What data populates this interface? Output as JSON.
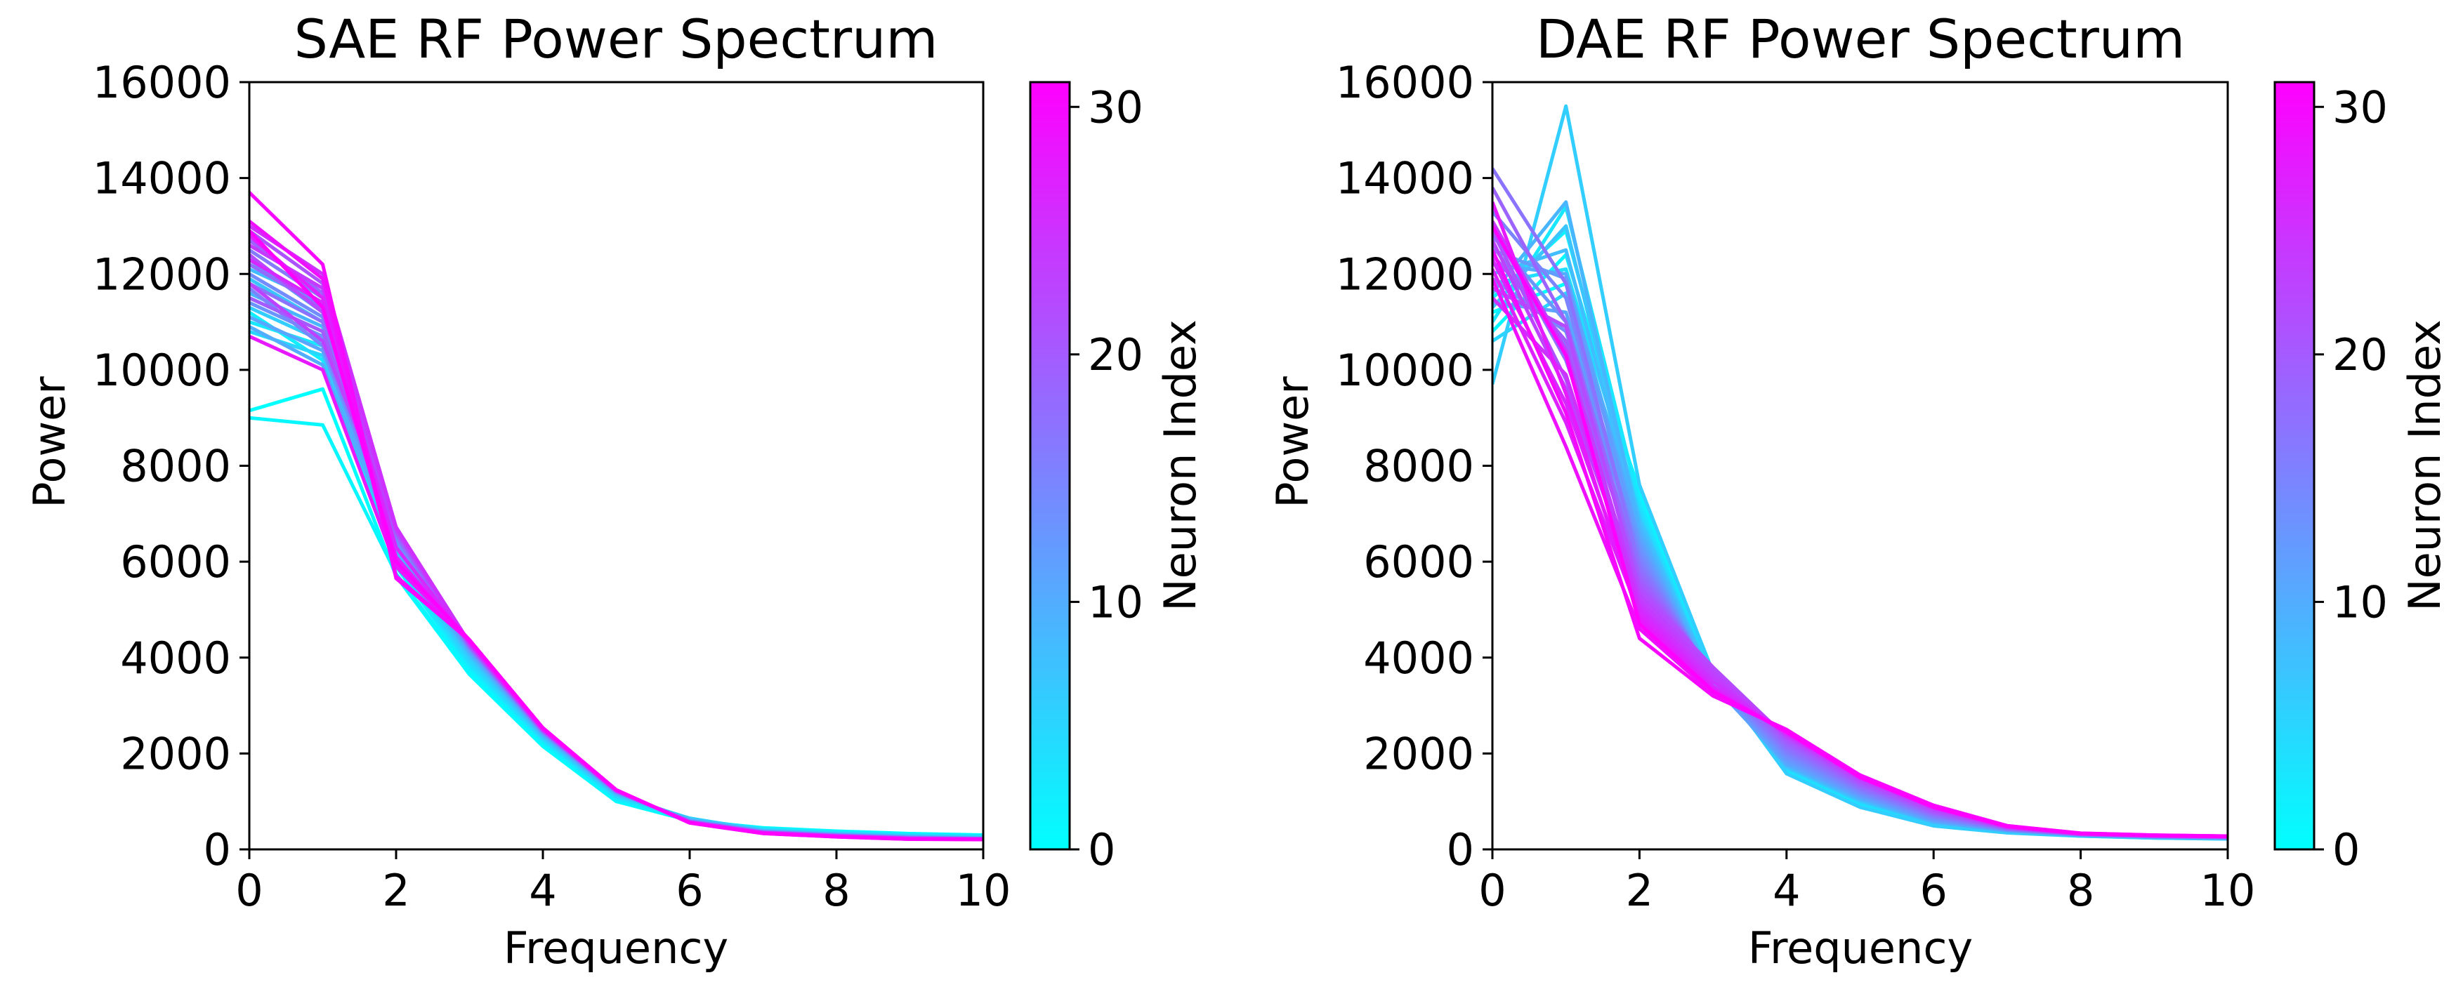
{
  "figure_description": "Two side-by-side line charts of receptive-field power spectra, one line per neuron, colored by neuron index with a cyan-to-magenta colormap",
  "colormap": {
    "name": "cool",
    "start": "#00ffff",
    "end": "#ff00ff"
  },
  "chart_data": [
    {
      "type": "line",
      "title": "SAE RF Power Spectrum",
      "xlabel": "Frequency",
      "ylabel": "Power",
      "xlim": [
        0,
        10
      ],
      "ylim": [
        0,
        16000
      ],
      "xticks": [
        "0",
        "2",
        "4",
        "6",
        "8",
        "10"
      ],
      "yticks": [
        "0",
        "2000",
        "4000",
        "6000",
        "8000",
        "10000",
        "12000",
        "14000",
        "16000"
      ],
      "grid": false,
      "x": [
        0,
        1,
        2,
        3,
        4,
        5,
        6,
        7,
        8,
        9,
        10
      ],
      "colorbar": {
        "label": "Neuron Index",
        "range": [
          0,
          31
        ],
        "ticks": [
          "0",
          "10",
          "20",
          "30"
        ]
      },
      "series": [
        {
          "values": [
            9150,
            9600,
            5700,
            3650,
            2150,
            1000,
            600,
            450,
            380,
            330,
            300
          ]
        },
        {
          "values": [
            9000,
            8850,
            5750,
            3700,
            2200,
            1020,
            610,
            440,
            370,
            320,
            290
          ]
        },
        {
          "values": [
            11200,
            10200,
            5900,
            3800,
            2250,
            1050,
            620,
            430,
            360,
            310,
            280
          ]
        },
        {
          "values": [
            11000,
            10500,
            5950,
            3850,
            2280,
            1080,
            630,
            420,
            350,
            300,
            270
          ]
        },
        {
          "values": [
            11500,
            10800,
            6000,
            3900,
            2300,
            1100,
            640,
            410,
            340,
            290,
            260
          ]
        },
        {
          "values": [
            10800,
            10300,
            6050,
            3950,
            2320,
            1120,
            650,
            400,
            330,
            280,
            250
          ]
        },
        {
          "values": [
            11300,
            10600,
            6100,
            4000,
            2340,
            1140,
            640,
            395,
            325,
            275,
            245
          ]
        },
        {
          "values": [
            11900,
            11000,
            6150,
            4050,
            2360,
            1150,
            630,
            390,
            320,
            270,
            240
          ]
        },
        {
          "values": [
            12100,
            11400,
            6200,
            4080,
            2380,
            1160,
            620,
            385,
            315,
            265,
            235
          ]
        },
        {
          "values": [
            11600,
            10900,
            6250,
            4100,
            2400,
            1170,
            610,
            380,
            310,
            260,
            230
          ]
        },
        {
          "values": [
            10900,
            10100,
            6300,
            4120,
            2410,
            1180,
            600,
            375,
            305,
            255,
            228
          ]
        },
        {
          "values": [
            11100,
            10400,
            6350,
            4150,
            2420,
            1190,
            595,
            372,
            302,
            252,
            226
          ]
        },
        {
          "values": [
            12300,
            11200,
            6400,
            4170,
            2430,
            1195,
            590,
            370,
            300,
            250,
            225
          ]
        },
        {
          "values": [
            11400,
            10700,
            6450,
            4190,
            2440,
            1200,
            588,
            368,
            298,
            248,
            224
          ]
        },
        {
          "values": [
            12000,
            11100,
            6500,
            4200,
            2450,
            1205,
            586,
            366,
            296,
            246,
            223
          ]
        },
        {
          "values": [
            11700,
            10500,
            6520,
            4210,
            2455,
            1210,
            584,
            364,
            294,
            244,
            222
          ]
        },
        {
          "values": [
            12500,
            11500,
            6540,
            4220,
            2460,
            1212,
            582,
            362,
            292,
            242,
            221
          ]
        },
        {
          "values": [
            11800,
            11000,
            6560,
            4230,
            2465,
            1214,
            580,
            360,
            290,
            240,
            220
          ]
        },
        {
          "values": [
            12200,
            11300,
            6580,
            4240,
            2470,
            1216,
            578,
            358,
            288,
            238,
            219
          ]
        },
        {
          "values": [
            12700,
            11600,
            6600,
            4250,
            2475,
            1218,
            576,
            356,
            286,
            236,
            218
          ]
        },
        {
          "values": [
            11500,
            10800,
            6620,
            4260,
            2480,
            1220,
            574,
            354,
            284,
            234,
            217
          ]
        },
        {
          "values": [
            12900,
            11800,
            6640,
            4270,
            2485,
            1222,
            572,
            352,
            282,
            232,
            216
          ]
        },
        {
          "values": [
            12400,
            11200,
            6660,
            4280,
            2490,
            1224,
            570,
            350,
            280,
            230,
            215
          ]
        },
        {
          "values": [
            11800,
            10600,
            6680,
            4290,
            2495,
            1226,
            568,
            348,
            278,
            228,
            214
          ]
        },
        {
          "values": [
            12600,
            11700,
            6700,
            4300,
            2500,
            1228,
            566,
            346,
            276,
            226,
            213
          ]
        },
        {
          "values": [
            13000,
            12000,
            6720,
            4310,
            2505,
            1230,
            564,
            344,
            274,
            224,
            212
          ]
        },
        {
          "values": [
            12300,
            11400,
            6300,
            4320,
            2510,
            1232,
            562,
            342,
            272,
            222,
            211
          ]
        },
        {
          "values": [
            12800,
            11500,
            6100,
            4330,
            2515,
            1234,
            560,
            340,
            270,
            220,
            210
          ]
        },
        {
          "values": [
            10700,
            10000,
            5900,
            4340,
            2520,
            1236,
            558,
            338,
            268,
            218,
            209
          ]
        },
        {
          "values": [
            13100,
            11900,
            5700,
            4350,
            2525,
            1238,
            556,
            336,
            266,
            216,
            208
          ]
        },
        {
          "values": [
            13700,
            12200,
            5650,
            4360,
            2530,
            1240,
            554,
            334,
            264,
            214,
            207
          ]
        },
        {
          "values": [
            12900,
            11300,
            6000,
            4370,
            2535,
            1242,
            552,
            332,
            262,
            212,
            206
          ]
        }
      ]
    },
    {
      "type": "line",
      "title": "DAE RF Power Spectrum",
      "xlabel": "Frequency",
      "ylabel": "Power",
      "xlim": [
        0,
        10
      ],
      "ylim": [
        0,
        16000
      ],
      "xticks": [
        "0",
        "2",
        "4",
        "6",
        "8",
        "10"
      ],
      "yticks": [
        "0",
        "2000",
        "4000",
        "6000",
        "8000",
        "10000",
        "12000",
        "14000",
        "16000"
      ],
      "grid": false,
      "x": [
        0,
        1,
        2,
        3,
        4,
        5,
        6,
        7,
        8,
        9,
        10
      ],
      "colorbar": {
        "label": "Neuron Index",
        "range": [
          0,
          31
        ],
        "ticks": [
          "0",
          "10",
          "20",
          "30"
        ]
      },
      "series": [
        {
          "values": [
            11200,
            11800,
            7500,
            3700,
            1600,
            900,
            500,
            350,
            280,
            240,
            220
          ]
        },
        {
          "values": [
            10800,
            12400,
            7400,
            3650,
            1620,
            920,
            510,
            355,
            282,
            242,
            222
          ]
        },
        {
          "values": [
            11500,
            12900,
            7300,
            3600,
            1640,
            940,
            520,
            360,
            284,
            244,
            224
          ]
        },
        {
          "values": [
            11000,
            13400,
            7200,
            3580,
            1660,
            960,
            530,
            365,
            286,
            246,
            226
          ]
        },
        {
          "values": [
            11800,
            12100,
            7100,
            3560,
            1680,
            980,
            540,
            370,
            288,
            248,
            228
          ]
        },
        {
          "values": [
            10600,
            11600,
            7000,
            3540,
            1700,
            1000,
            550,
            375,
            290,
            250,
            230
          ]
        },
        {
          "values": [
            9700,
            15500,
            7600,
            3680,
            1580,
            880,
            490,
            345,
            278,
            238,
            218
          ]
        },
        {
          "values": [
            11300,
            13000,
            6900,
            3520,
            1720,
            1020,
            560,
            380,
            292,
            252,
            232
          ]
        },
        {
          "values": [
            12000,
            12500,
            6800,
            3500,
            1740,
            1040,
            570,
            385,
            294,
            254,
            234
          ]
        },
        {
          "values": [
            11600,
            13500,
            6700,
            3480,
            1760,
            1060,
            580,
            390,
            296,
            256,
            236
          ]
        },
        {
          "values": [
            12200,
            12000,
            6600,
            3460,
            1780,
            1080,
            590,
            395,
            298,
            258,
            238
          ]
        },
        {
          "values": [
            11400,
            11200,
            6500,
            3440,
            1800,
            1100,
            600,
            400,
            300,
            260,
            240
          ]
        },
        {
          "values": [
            12500,
            11900,
            6400,
            3450,
            1850,
            1130,
            620,
            405,
            302,
            262,
            242
          ]
        },
        {
          "values": [
            12800,
            11000,
            6300,
            3480,
            1900,
            1160,
            640,
            410,
            304,
            264,
            244
          ]
        },
        {
          "values": [
            11900,
            10800,
            6200,
            3500,
            1950,
            1190,
            660,
            415,
            306,
            266,
            246
          ]
        },
        {
          "values": [
            13300,
            11500,
            6100,
            3530,
            2000,
            1220,
            680,
            420,
            308,
            268,
            248
          ]
        },
        {
          "values": [
            12600,
            10500,
            6000,
            3560,
            2050,
            1250,
            700,
            425,
            310,
            270,
            250
          ]
        },
        {
          "values": [
            14200,
            11800,
            5900,
            3600,
            2100,
            1280,
            720,
            430,
            312,
            272,
            252
          ]
        },
        {
          "values": [
            13000,
            10200,
            5800,
            3640,
            2150,
            1310,
            740,
            435,
            314,
            274,
            254
          ]
        },
        {
          "values": [
            13800,
            11000,
            5700,
            3680,
            2200,
            1340,
            760,
            440,
            316,
            276,
            256
          ]
        },
        {
          "values": [
            12400,
            10600,
            5600,
            3720,
            2250,
            1370,
            780,
            445,
            318,
            278,
            258
          ]
        },
        {
          "values": [
            12900,
            9800,
            5500,
            3760,
            2300,
            1400,
            800,
            450,
            320,
            280,
            260
          ]
        },
        {
          "values": [
            11700,
            10900,
            5400,
            3800,
            2330,
            1430,
            820,
            455,
            322,
            282,
            262
          ]
        },
        {
          "values": [
            12700,
            9600,
            5300,
            3700,
            2360,
            1460,
            840,
            460,
            324,
            284,
            264
          ]
        },
        {
          "values": [
            13100,
            10400,
            5200,
            3600,
            2380,
            1480,
            860,
            465,
            326,
            286,
            266
          ]
        },
        {
          "values": [
            11500,
            9900,
            5100,
            3500,
            2400,
            1500,
            870,
            470,
            328,
            288,
            268
          ]
        },
        {
          "values": [
            12300,
            9300,
            5000,
            3400,
            2420,
            1510,
            880,
            475,
            330,
            290,
            270
          ]
        },
        {
          "values": [
            12100,
            8900,
            4900,
            3350,
            2440,
            1520,
            890,
            480,
            332,
            292,
            272
          ]
        },
        {
          "values": [
            13500,
            9500,
            4800,
            3300,
            2460,
            1530,
            900,
            485,
            334,
            294,
            274
          ]
        },
        {
          "values": [
            11900,
            8400,
            4600,
            3250,
            2480,
            1540,
            910,
            490,
            336,
            296,
            276
          ]
        },
        {
          "values": [
            12500,
            9100,
            4400,
            3200,
            2500,
            1550,
            920,
            495,
            338,
            298,
            278
          ]
        },
        {
          "values": [
            13000,
            10300,
            4700,
            3300,
            2450,
            1500,
            880,
            480,
            330,
            290,
            270
          ]
        }
      ]
    }
  ]
}
